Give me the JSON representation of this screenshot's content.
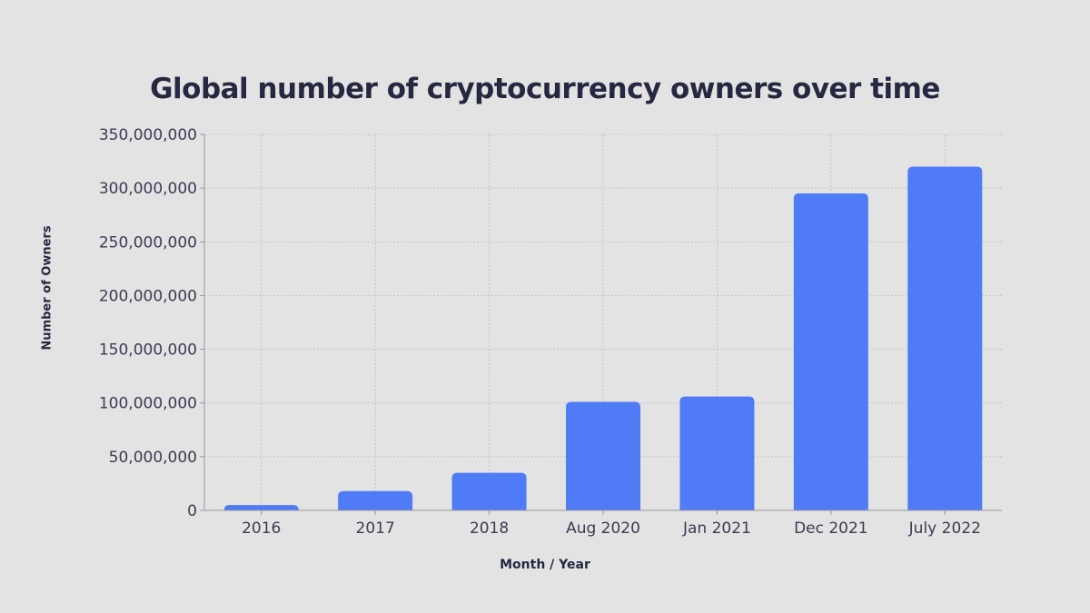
{
  "chart_data": {
    "type": "bar",
    "title": "Global number of cryptocurrency owners over time",
    "xlabel": "Month / Year",
    "ylabel": "Number of Owners",
    "categories": [
      "2016",
      "2017",
      "2018",
      "Aug 2020",
      "Jan 2021",
      "Dec 2021",
      "July 2022"
    ],
    "values": [
      5000000,
      18000000,
      35000000,
      101000000,
      106000000,
      295000000,
      320000000
    ],
    "ylim": [
      0,
      350000000
    ],
    "yticks": [
      0,
      50000000,
      100000000,
      150000000,
      200000000,
      250000000,
      300000000,
      350000000
    ],
    "ytick_labels": [
      "0",
      "50,000,000",
      "100,000,000",
      "150,000,000",
      "200,000,000",
      "250,000,000",
      "300,000,000",
      "350,000,000"
    ],
    "grid": true,
    "bar_color": "#4f7bf7"
  }
}
